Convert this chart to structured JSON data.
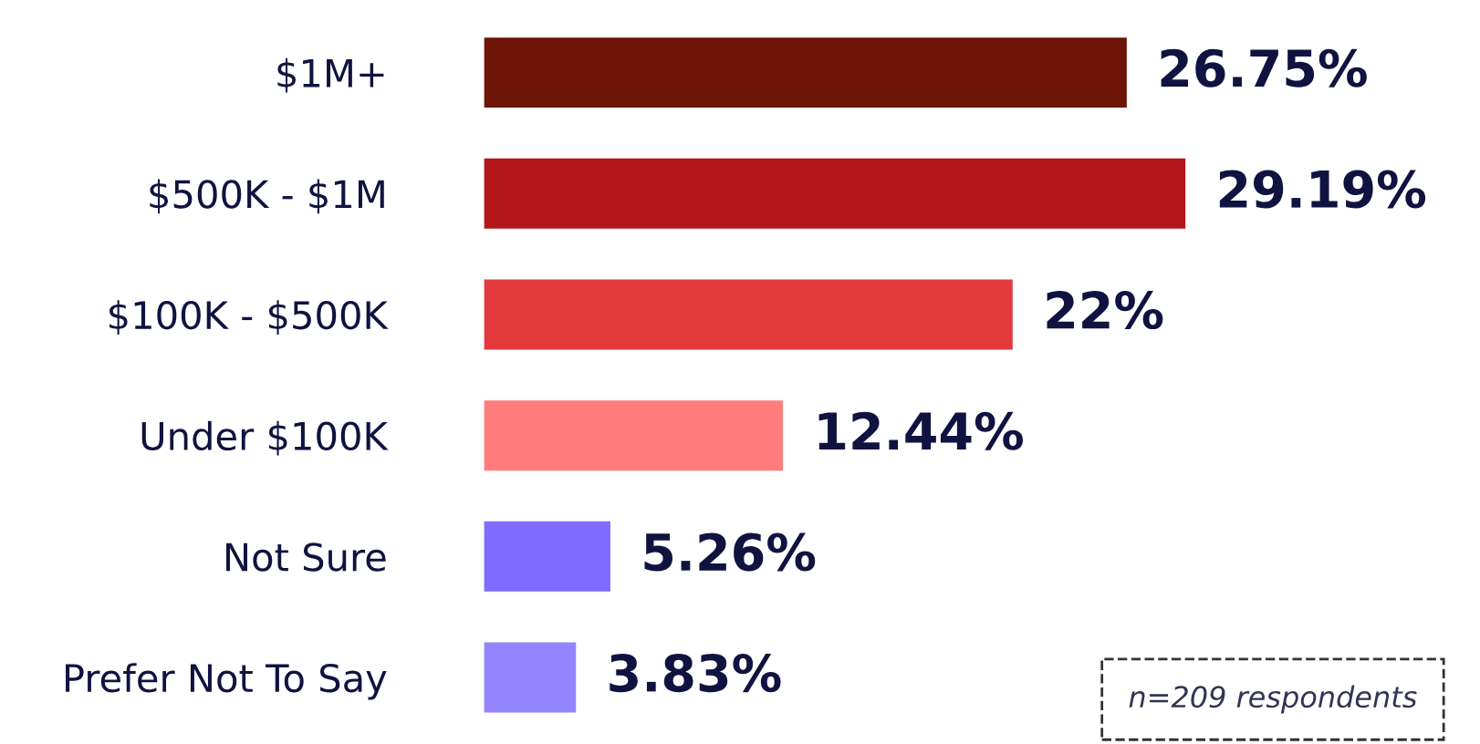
{
  "chart_data": {
    "type": "bar",
    "orientation": "horizontal",
    "categories": [
      "$1M+",
      "$500K - $1M",
      "$100K - $500K",
      "Under $100K",
      "Not Sure",
      "Prefer Not To Say"
    ],
    "values": [
      26.75,
      29.19,
      22,
      12.44,
      5.26,
      3.83
    ],
    "colors": [
      "#6e1508",
      "#b3161b",
      "#e2393d",
      "#ff7c7c",
      "#7f6bff",
      "#9484ff"
    ],
    "value_labels": [
      "26.75%",
      "29.19%",
      "22%",
      "12.44%",
      "5.26%",
      "3.83%"
    ],
    "annotations": [
      "n=209 respondents"
    ],
    "grid": false,
    "legend": false
  }
}
